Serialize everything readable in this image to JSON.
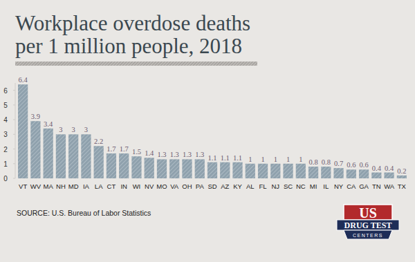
{
  "chart_data": {
    "type": "bar",
    "title": "Workplace overdose deaths per 1 million people, 2018",
    "categories": [
      "VT",
      "WV",
      "MA",
      "NH",
      "MD",
      "IA",
      "LA",
      "CT",
      "IN",
      "WI",
      "NV",
      "MO",
      "VA",
      "OH",
      "PA",
      "SD",
      "AZ",
      "KY",
      "AL",
      "FL",
      "NJ",
      "SC",
      "NC",
      "MI",
      "IL",
      "NY",
      "CA",
      "GA",
      "TN",
      "WA",
      "TX"
    ],
    "values": [
      6.4,
      3.9,
      3.4,
      3,
      3,
      3,
      2.2,
      1.7,
      1.7,
      1.5,
      1.4,
      1.3,
      1.3,
      1.3,
      1.3,
      1.1,
      1.1,
      1.1,
      1,
      1,
      1,
      1,
      1,
      0.8,
      0.8,
      0.7,
      0.6,
      0.6,
      0.4,
      0.4,
      0.2
    ],
    "color": "#8fa1ad",
    "ylim": [
      0,
      6.5
    ],
    "yticks": [
      0,
      1,
      2,
      3,
      4,
      5,
      6
    ],
    "grid": false,
    "data_labels": true,
    "annotations": [
      "SOURCE: U.S. Bureau of Labor Statistics",
      "US",
      "DRUG TEST",
      "CENTERS"
    ]
  }
}
